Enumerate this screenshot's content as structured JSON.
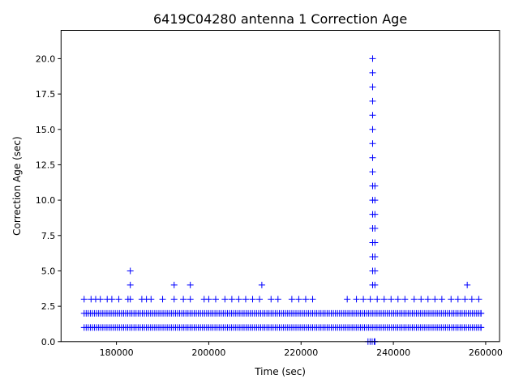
{
  "chart_data": {
    "type": "scatter",
    "title": "6419C04280 antenna 1 Correction Age",
    "xlabel": "Time (sec)",
    "ylabel": "Correction Age (sec)",
    "xlim": [
      168000,
      263000
    ],
    "ylim": [
      0,
      22
    ],
    "x_ticks": [
      180000,
      200000,
      220000,
      240000,
      260000
    ],
    "x_tick_labels": [
      "180000",
      "200000",
      "220000",
      "240000",
      "260000"
    ],
    "y_ticks": [
      0,
      2.5,
      5,
      7.5,
      10,
      12.5,
      15,
      17.5,
      20
    ],
    "y_tick_labels": [
      "0.0",
      "2.5",
      "5.0",
      "7.5",
      "10.0",
      "12.5",
      "15.0",
      "17.5",
      "20.0"
    ],
    "grid": false,
    "legend": "none",
    "marker": "plus",
    "marker_color": "#0000ff",
    "series": [
      {
        "dense_bands": [
          {
            "y": 1,
            "x_start": 173000,
            "x_end": 259000
          },
          {
            "y": 2,
            "x_start": 173000,
            "x_end": 259000
          },
          {
            "y": 0,
            "x_start": 234500,
            "x_end": 236000
          }
        ],
        "points": [
          {
            "x": 173000,
            "y": 3
          },
          {
            "x": 174500,
            "y": 3
          },
          {
            "x": 175500,
            "y": 3
          },
          {
            "x": 176500,
            "y": 3
          },
          {
            "x": 178000,
            "y": 3
          },
          {
            "x": 179000,
            "y": 3
          },
          {
            "x": 180500,
            "y": 3
          },
          {
            "x": 182500,
            "y": 3
          },
          {
            "x": 183000,
            "y": 3
          },
          {
            "x": 185500,
            "y": 3
          },
          {
            "x": 186500,
            "y": 3
          },
          {
            "x": 187500,
            "y": 3
          },
          {
            "x": 190000,
            "y": 3
          },
          {
            "x": 192500,
            "y": 3
          },
          {
            "x": 194500,
            "y": 3
          },
          {
            "x": 196000,
            "y": 3
          },
          {
            "x": 199000,
            "y": 3
          },
          {
            "x": 200000,
            "y": 3
          },
          {
            "x": 201500,
            "y": 3
          },
          {
            "x": 203500,
            "y": 3
          },
          {
            "x": 205000,
            "y": 3
          },
          {
            "x": 206500,
            "y": 3
          },
          {
            "x": 208000,
            "y": 3
          },
          {
            "x": 209500,
            "y": 3
          },
          {
            "x": 211000,
            "y": 3
          },
          {
            "x": 213500,
            "y": 3
          },
          {
            "x": 215000,
            "y": 3
          },
          {
            "x": 218000,
            "y": 3
          },
          {
            "x": 219500,
            "y": 3
          },
          {
            "x": 221000,
            "y": 3
          },
          {
            "x": 222500,
            "y": 3
          },
          {
            "x": 230000,
            "y": 3
          },
          {
            "x": 232000,
            "y": 3
          },
          {
            "x": 233500,
            "y": 3
          },
          {
            "x": 235000,
            "y": 3
          },
          {
            "x": 236500,
            "y": 3
          },
          {
            "x": 238000,
            "y": 3
          },
          {
            "x": 239500,
            "y": 3
          },
          {
            "x": 241000,
            "y": 3
          },
          {
            "x": 242500,
            "y": 3
          },
          {
            "x": 244500,
            "y": 3
          },
          {
            "x": 246000,
            "y": 3
          },
          {
            "x": 247500,
            "y": 3
          },
          {
            "x": 249000,
            "y": 3
          },
          {
            "x": 250500,
            "y": 3
          },
          {
            "x": 252500,
            "y": 3
          },
          {
            "x": 254000,
            "y": 3
          },
          {
            "x": 255500,
            "y": 3
          },
          {
            "x": 257000,
            "y": 3
          },
          {
            "x": 258500,
            "y": 3
          },
          {
            "x": 183000,
            "y": 4
          },
          {
            "x": 183000,
            "y": 5
          },
          {
            "x": 192500,
            "y": 4
          },
          {
            "x": 196000,
            "y": 4
          },
          {
            "x": 211500,
            "y": 4
          },
          {
            "x": 256000,
            "y": 4
          },
          {
            "x": 235500,
            "y": 4
          },
          {
            "x": 236000,
            "y": 4
          },
          {
            "x": 235500,
            "y": 5
          },
          {
            "x": 236000,
            "y": 5
          },
          {
            "x": 235500,
            "y": 6
          },
          {
            "x": 236000,
            "y": 6
          },
          {
            "x": 235500,
            "y": 7
          },
          {
            "x": 236000,
            "y": 7
          },
          {
            "x": 235500,
            "y": 8
          },
          {
            "x": 236000,
            "y": 8
          },
          {
            "x": 235500,
            "y": 9
          },
          {
            "x": 236000,
            "y": 9
          },
          {
            "x": 235500,
            "y": 10
          },
          {
            "x": 236000,
            "y": 10
          },
          {
            "x": 235500,
            "y": 11
          },
          {
            "x": 236000,
            "y": 11
          },
          {
            "x": 235500,
            "y": 12
          },
          {
            "x": 235500,
            "y": 13
          },
          {
            "x": 235500,
            "y": 14
          },
          {
            "x": 235500,
            "y": 15
          },
          {
            "x": 235500,
            "y": 16
          },
          {
            "x": 235500,
            "y": 17
          },
          {
            "x": 235500,
            "y": 18
          },
          {
            "x": 235500,
            "y": 19
          },
          {
            "x": 235500,
            "y": 20
          }
        ]
      }
    ]
  }
}
